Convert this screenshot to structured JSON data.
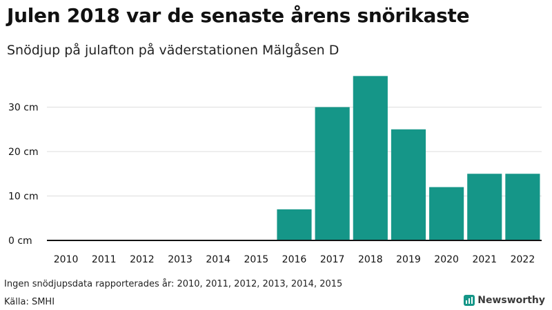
{
  "colors": {
    "bar": "#159688",
    "grid": "#dddddd",
    "baseline": "#111111",
    "brand": "#159688"
  },
  "header": {
    "title": "Julen 2018 var de senaste årens snörikaste",
    "subtitle": "Snödjup på julafton på väderstationen Mälgåsen D"
  },
  "footer": {
    "note": "Ingen snödjupsdata rapporterades år: 2010, 2011, 2012, 2013, 2014, 2015",
    "source": "Källa: SMHI",
    "brand_name": "Newsworthy",
    "brand_icon": "bar-chart-logo-icon"
  },
  "chart_data": {
    "type": "bar",
    "title": "Julen 2018 var de senaste årens snörikaste",
    "subtitle": "Snödjup på julafton på väderstationen Mälgåsen D",
    "xlabel": "",
    "ylabel": "",
    "categories": [
      "2010",
      "2011",
      "2012",
      "2013",
      "2014",
      "2015",
      "2016",
      "2017",
      "2018",
      "2019",
      "2020",
      "2021",
      "2022"
    ],
    "values": [
      null,
      null,
      null,
      null,
      null,
      null,
      7,
      30,
      37,
      25,
      12,
      15,
      15
    ],
    "unit": "cm",
    "ylim": [
      0,
      40
    ],
    "yticks": [
      0,
      10,
      20,
      30
    ],
    "ytick_labels": [
      "0 cm",
      "10 cm",
      "20 cm",
      "30 cm"
    ],
    "grid": true
  }
}
